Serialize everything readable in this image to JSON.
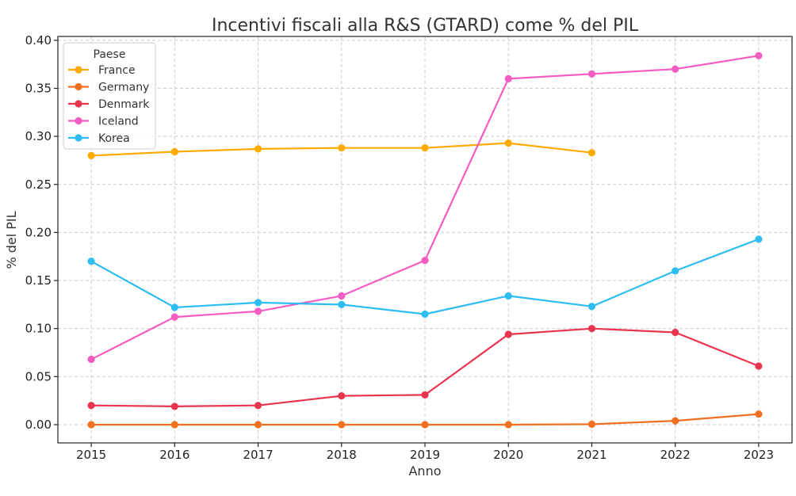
{
  "chart_data": {
    "type": "line",
    "title": "Incentivi fiscali alla R&S (GTARD) come % del PIL",
    "xlabel": "Anno",
    "ylabel": "% del PIL",
    "x": [
      2015,
      2016,
      2017,
      2018,
      2019,
      2020,
      2021,
      2022,
      2023
    ],
    "x_tick_labels": [
      "2015",
      "2016",
      "2017",
      "2018",
      "2019",
      "2020",
      "2021",
      "2022",
      "2023"
    ],
    "y_ticks": [
      0.0,
      0.05,
      0.1,
      0.15,
      0.2,
      0.25,
      0.3,
      0.35,
      0.4
    ],
    "y_tick_labels": [
      "0.00",
      "0.05",
      "0.10",
      "0.15",
      "0.20",
      "0.25",
      "0.30",
      "0.35",
      "0.40"
    ],
    "xlim": [
      2014.6,
      2023.4
    ],
    "ylim": [
      -0.019,
      0.404
    ],
    "grid": true,
    "legend_title": "Paese",
    "legend_position": "top-left",
    "series": [
      {
        "name": "France",
        "color": "#FFAA00",
        "values": [
          0.28,
          0.284,
          0.287,
          0.288,
          0.288,
          0.293,
          0.283,
          null,
          null
        ]
      },
      {
        "name": "Germany",
        "color": "#F07020",
        "values": [
          0.0,
          0.0,
          0.0,
          0.0,
          0.0,
          0.0,
          0.0005,
          0.004,
          0.011
        ]
      },
      {
        "name": "Denmark",
        "color": "#E8354F",
        "values": [
          0.02,
          0.019,
          0.02,
          0.03,
          0.031,
          0.094,
          0.1,
          0.096,
          0.061
        ]
      },
      {
        "name": "Iceland",
        "color": "#F55CC2",
        "values": [
          0.068,
          0.112,
          0.118,
          0.134,
          0.171,
          0.36,
          0.365,
          0.37,
          0.384
        ]
      },
      {
        "name": "Korea",
        "color": "#2DBDF3",
        "values": [
          0.17,
          0.122,
          0.127,
          0.125,
          0.115,
          0.134,
          0.123,
          0.16,
          0.193
        ]
      }
    ]
  }
}
